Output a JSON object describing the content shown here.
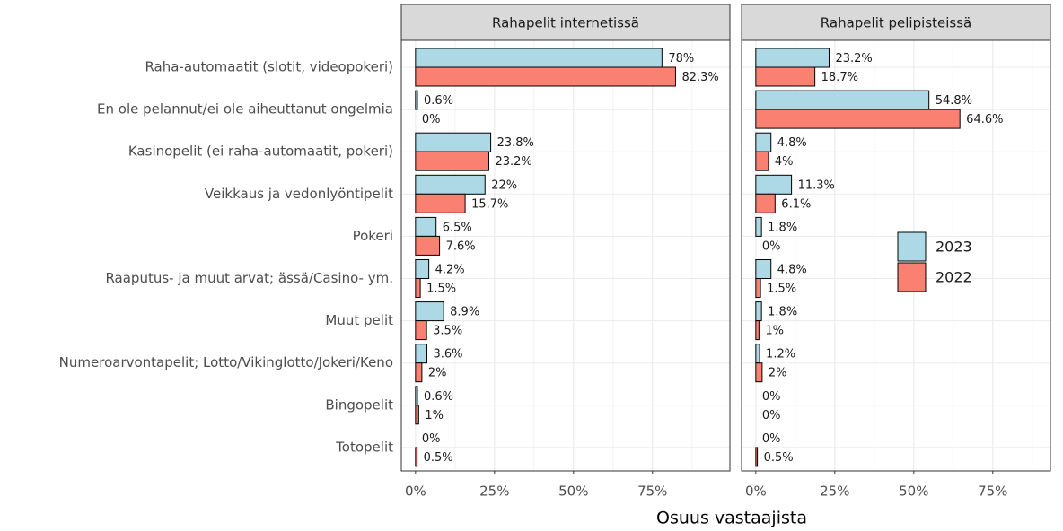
{
  "chart_data": {
    "type": "bar",
    "orientation": "horizontal",
    "x_label": "Osuus vastaajista",
    "categories": [
      "Raha-automaatit (slotit, videopokeri)",
      "En ole pelannut/ei ole aiheuttanut ongelmia",
      "Kasinopelit (ei raha-automaatit, pokeri)",
      "Veikkaus ja vedonlyöntipelit",
      "Pokeri",
      "Raaputus- ja muut arvat; ässä/Casino- ym.",
      "Muut pelit",
      "Numeroarvontapelit; Lotto/Vikinglotto/Jokeri/Keno",
      "Bingopelit",
      "Totopelit"
    ],
    "series": [
      {
        "name": "2023",
        "color": "#add8e6"
      },
      {
        "name": "2022",
        "color": "#fa8072"
      }
    ],
    "xlim": [
      -4.5,
      99.5
    ],
    "xticks": [
      {
        "value": 0,
        "label": "0%"
      },
      {
        "value": 25,
        "label": "25%"
      },
      {
        "value": 50,
        "label": "50%"
      },
      {
        "value": 75,
        "label": "75%"
      }
    ],
    "minor_xticks": [
      12.5,
      37.5,
      62.5,
      87.5
    ],
    "grid": true,
    "legend": "right",
    "facets": [
      {
        "title": "Rahapelit internetissä",
        "series": [
          {
            "values": [
              78,
              0.6,
              23.8,
              22,
              6.5,
              4.2,
              8.9,
              3.6,
              0.6,
              0
            ],
            "value_labels": [
              "78%",
              "0.6%",
              "23.8%",
              "22%",
              "6.5%",
              "4.2%",
              "8.9%",
              "3.6%",
              "0.6%",
              "0%"
            ]
          },
          {
            "values": [
              82.3,
              0,
              23.2,
              15.7,
              7.6,
              1.5,
              3.5,
              2,
              1,
              0.5
            ],
            "value_labels": [
              "82.3%",
              "0%",
              "23.2%",
              "15.7%",
              "7.6%",
              "1.5%",
              "3.5%",
              "2%",
              "1%",
              "0.5%"
            ]
          }
        ]
      },
      {
        "title": "Rahapelit pelipisteissä",
        "series": [
          {
            "values": [
              23.2,
              54.8,
              4.8,
              11.3,
              1.8,
              4.8,
              1.8,
              1.2,
              0,
              0
            ],
            "value_labels": [
              "23.2%",
              "54.8%",
              "4.8%",
              "11.3%",
              "1.8%",
              "4.8%",
              "1.8%",
              "1.2%",
              "0%",
              "0%"
            ]
          },
          {
            "values": [
              18.7,
              64.6,
              4,
              6.1,
              0,
              1.5,
              1,
              2,
              0,
              0.5
            ],
            "value_labels": [
              "18.7%",
              "64.6%",
              "4%",
              "6.1%",
              "0%",
              "1.5%",
              "1%",
              "2%",
              "0%",
              "0.5%"
            ]
          }
        ]
      }
    ]
  }
}
